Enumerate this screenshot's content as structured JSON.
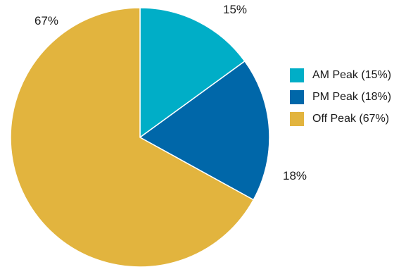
{
  "chart_data": {
    "type": "pie",
    "slices": [
      {
        "name": "AM Peak",
        "value": 15,
        "label": "15%",
        "legend": "AM Peak (15%)",
        "color": "#00AEC7"
      },
      {
        "name": "PM Peak",
        "value": 18,
        "label": "18%",
        "legend": "PM Peak (18%)",
        "color": "#0067A9"
      },
      {
        "name": "Off Peak",
        "value": 67,
        "label": "67%",
        "legend": "Off Peak (67%)",
        "color": "#E2B43E"
      }
    ],
    "start": "12 o'clock",
    "direction": "clockwise",
    "legend_position": "right"
  }
}
